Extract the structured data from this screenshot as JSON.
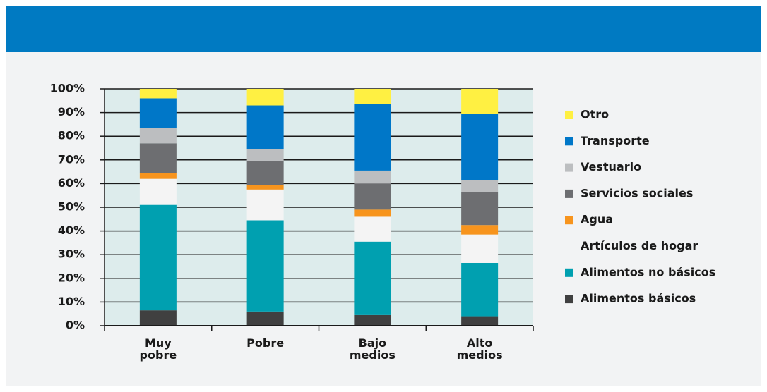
{
  "chart_data": {
    "type": "stacked_bar",
    "categories": [
      "Muy pobre",
      "Pobre",
      "Bajo medios",
      "Alto medios"
    ],
    "series": [
      {
        "name": "Alimentos básicos",
        "color": "#404040",
        "values": [
          6.5,
          6,
          4.5,
          4
        ]
      },
      {
        "name": "Alimentos no básicos",
        "color": "#00a0b0",
        "values": [
          44.5,
          38.5,
          31,
          22.5
        ]
      },
      {
        "name": "Artículos de hogar",
        "color": "#f4f4f4",
        "values": [
          11,
          13,
          10.5,
          12
        ]
      },
      {
        "name": "Agua",
        "color": "#f7941d",
        "values": [
          2.5,
          2,
          3,
          4
        ]
      },
      {
        "name": "Servicios sociales",
        "color": "#6d6e71",
        "values": [
          12.5,
          10,
          11,
          14
        ]
      },
      {
        "name": "Vestuario",
        "color": "#bcbec0",
        "values": [
          6.5,
          5,
          5.5,
          5
        ]
      },
      {
        "name": "Transporte",
        "color": "#0077c8",
        "values": [
          12.5,
          18.5,
          28,
          28
        ]
      },
      {
        "name": "Otro",
        "color": "#fff042",
        "values": [
          4,
          7,
          6.5,
          10.5
        ]
      }
    ],
    "ylim": [
      0,
      100
    ],
    "yticks": [
      {
        "value": 0,
        "label": "0%"
      },
      {
        "value": 10,
        "label": "10%"
      },
      {
        "value": 20,
        "label": "20%"
      },
      {
        "value": 30,
        "label": "30%"
      },
      {
        "value": 40,
        "label": "40%"
      },
      {
        "value": 50,
        "label": "50%"
      },
      {
        "value": 60,
        "label": "60%"
      },
      {
        "value": 70,
        "label": "70%"
      },
      {
        "value": 80,
        "label": "80%"
      },
      {
        "value": 90,
        "label": "90%"
      },
      {
        "value": 100,
        "label": "100%"
      }
    ],
    "grid": true,
    "legend": "right"
  }
}
